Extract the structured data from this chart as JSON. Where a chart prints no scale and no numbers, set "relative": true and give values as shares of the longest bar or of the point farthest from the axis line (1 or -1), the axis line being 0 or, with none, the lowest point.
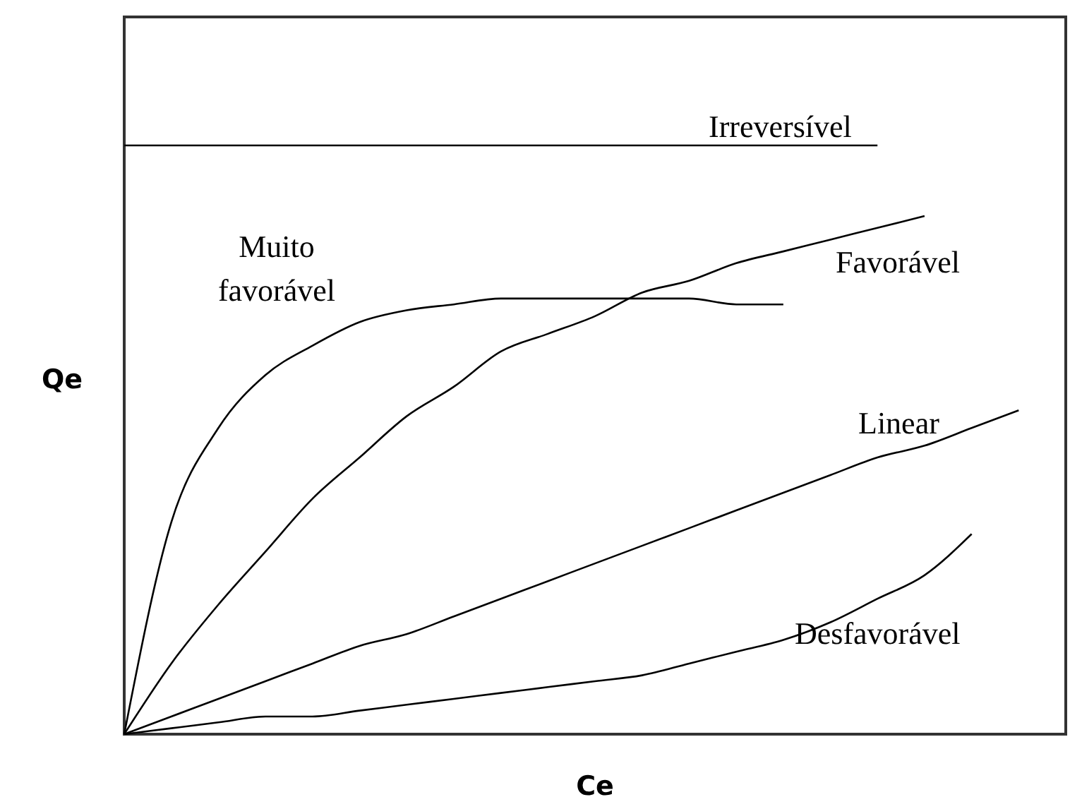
{
  "chart_data": {
    "type": "line",
    "relative": true,
    "xlabel": "Ce",
    "ylabel": "Qe",
    "categories": [
      null,
      null,
      null,
      null,
      null,
      null,
      null,
      null,
      null,
      null,
      null,
      null,
      null,
      null,
      null,
      null,
      null,
      null,
      null,
      null,
      null
    ],
    "series": [
      {
        "name": "Irreversível",
        "color": "#000000",
        "values": [
          1,
          1,
          1,
          1,
          1,
          1,
          1,
          1,
          1,
          1,
          1,
          1,
          1,
          1,
          1,
          1,
          1,
          null,
          null,
          null,
          null
        ]
      },
      {
        "name": "Muito favorável",
        "color": "#000000",
        "values": [
          0,
          0.36,
          0.52,
          0.61,
          0.66,
          0.7,
          0.72,
          0.73,
          0.74,
          0.74,
          0.74,
          0.74,
          0.74,
          0.73,
          0.73,
          null,
          null,
          null,
          null,
          null,
          null
        ]
      },
      {
        "name": "Favorável",
        "color": "#000000",
        "values": [
          0,
          0.12,
          0.22,
          0.31,
          0.4,
          0.47,
          0.54,
          0.59,
          0.65,
          0.68,
          0.71,
          0.75,
          0.77,
          0.8,
          0.82,
          0.84,
          0.86,
          0.88,
          null,
          null,
          null
        ]
      },
      {
        "name": "Linear",
        "color": "#000000",
        "values": [
          0,
          0.03,
          0.06,
          0.09,
          0.12,
          0.15,
          0.17,
          0.2,
          0.23,
          0.26,
          0.29,
          0.32,
          0.35,
          0.38,
          0.41,
          0.44,
          0.47,
          0.49,
          0.52,
          0.55,
          null
        ]
      },
      {
        "name": "Desfavorável",
        "color": "#000000",
        "values": [
          0,
          0.01,
          0.02,
          0.03,
          0.03,
          0.04,
          0.05,
          0.06,
          0.07,
          0.08,
          0.09,
          0.1,
          0.12,
          0.14,
          0.16,
          0.19,
          0.23,
          0.27,
          0.34,
          null,
          null
        ]
      }
    ],
    "legend": false,
    "marker": "none",
    "line_style": "solid"
  }
}
